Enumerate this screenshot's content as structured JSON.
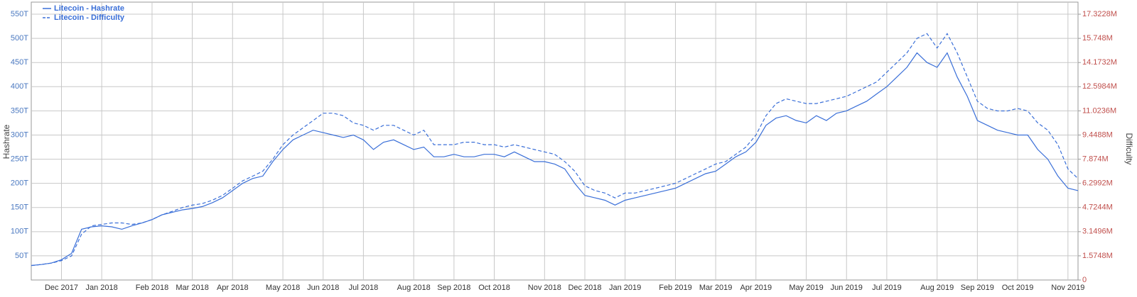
{
  "chart_data": {
    "type": "line",
    "categories": [
      null,
      null,
      null,
      "Dec 2017",
      null,
      null,
      null,
      "Jan 2018",
      null,
      null,
      null,
      null,
      "Feb 2018",
      null,
      null,
      null,
      "Mar 2018",
      null,
      null,
      null,
      "Apr 2018",
      null,
      null,
      null,
      null,
      "May 2018",
      null,
      null,
      null,
      "Jun 2018",
      null,
      null,
      null,
      "Jul 2018",
      null,
      null,
      null,
      null,
      "Aug 2018",
      null,
      null,
      null,
      "Sep 2018",
      null,
      null,
      null,
      "Oct 2018",
      null,
      null,
      null,
      null,
      "Nov 2018",
      null,
      null,
      null,
      "Dec 2018",
      null,
      null,
      null,
      "Jan 2019",
      null,
      null,
      null,
      null,
      "Feb 2019",
      null,
      null,
      null,
      "Mar 2019",
      null,
      null,
      null,
      "Apr 2019",
      null,
      null,
      null,
      null,
      "May 2019",
      null,
      null,
      null,
      "Jun 2019",
      null,
      null,
      null,
      "Jul 2019",
      null,
      null,
      null,
      null,
      "Aug 2019",
      null,
      null,
      null,
      "Sep 2019",
      null,
      null,
      null,
      "Oct 2019",
      null,
      null,
      null,
      null,
      "Nov 2019",
      null
    ],
    "series": [
      {
        "name": "Litecoin - Hashrate",
        "color": "#3a6fd8",
        "dash": false,
        "values": [
          30,
          32,
          35,
          42,
          55,
          105,
          110,
          112,
          110,
          105,
          112,
          118,
          125,
          135,
          140,
          145,
          148,
          152,
          160,
          170,
          185,
          200,
          210,
          215,
          245,
          270,
          290,
          300,
          310,
          305,
          300,
          295,
          300,
          290,
          270,
          285,
          290,
          280,
          270,
          275,
          255,
          255,
          260,
          255,
          255,
          260,
          260,
          255,
          265,
          255,
          245,
          245,
          240,
          230,
          200,
          175,
          170,
          165,
          155,
          165,
          170,
          175,
          180,
          185,
          190,
          200,
          210,
          220,
          225,
          240,
          255,
          265,
          285,
          320,
          335,
          340,
          330,
          325,
          340,
          330,
          345,
          350,
          360,
          370,
          385,
          400,
          420,
          440,
          470,
          450,
          440,
          470,
          420,
          380,
          330,
          320,
          310,
          305,
          300,
          300,
          270,
          250,
          215,
          190,
          185
        ]
      },
      {
        "name": "Litecoin - Difficulty",
        "color": "#3a6fd8",
        "dash": true,
        "axis": "y2",
        "values": [
          0.94,
          1.01,
          1.1,
          1.26,
          1.57,
          2.99,
          3.53,
          3.62,
          3.72,
          3.72,
          3.62,
          3.72,
          3.94,
          4.25,
          4.47,
          4.72,
          4.88,
          4.98,
          5.2,
          5.51,
          5.98,
          6.46,
          6.77,
          7.09,
          7.87,
          8.82,
          9.45,
          9.92,
          10.39,
          10.87,
          10.87,
          10.71,
          10.24,
          10.08,
          9.76,
          10.08,
          10.08,
          9.76,
          9.45,
          9.76,
          8.82,
          8.82,
          8.82,
          8.98,
          8.98,
          8.82,
          8.82,
          8.66,
          8.82,
          8.66,
          8.5,
          8.35,
          8.19,
          7.72,
          7.09,
          6.14,
          5.83,
          5.67,
          5.35,
          5.67,
          5.67,
          5.83,
          5.98,
          6.14,
          6.3,
          6.61,
          6.93,
          7.24,
          7.56,
          7.72,
          8.19,
          8.66,
          9.45,
          10.71,
          11.5,
          11.81,
          11.65,
          11.5,
          11.5,
          11.65,
          11.81,
          11.97,
          12.28,
          12.6,
          12.91,
          13.54,
          14.17,
          14.8,
          15.75,
          16.06,
          15.12,
          16.06,
          14.8,
          13.23,
          11.65,
          11.18,
          11.02,
          11.02,
          11.18,
          11.02,
          10.24,
          9.76,
          8.82,
          7.24,
          6.61
        ]
      }
    ],
    "y_label": "Hashrate",
    "y2_label": "Difficulty",
    "ylim": [
      0,
      575
    ],
    "yticks": [
      {
        "value": 50,
        "label": "50T"
      },
      {
        "value": 100,
        "label": "100T"
      },
      {
        "value": 150,
        "label": "150T"
      },
      {
        "value": 200,
        "label": "200T"
      },
      {
        "value": 250,
        "label": "250T"
      },
      {
        "value": 300,
        "label": "300T"
      },
      {
        "value": 350,
        "label": "350T"
      },
      {
        "value": 400,
        "label": "400T"
      },
      {
        "value": 450,
        "label": "450T"
      },
      {
        "value": 500,
        "label": "500T"
      },
      {
        "value": 550,
        "label": "550T"
      }
    ],
    "y2lim": [
      0,
      18.11
    ],
    "y2ticks": [
      0,
      {
        "value": 1.5748,
        "label": "1.5748M"
      },
      {
        "value": 3.1496,
        "label": "3.1496M"
      },
      {
        "value": 4.7244,
        "label": "4.7244M"
      },
      {
        "value": 6.2992,
        "label": "6.2992M"
      },
      {
        "value": 7.874,
        "label": "7.874M"
      },
      {
        "value": 9.4488,
        "label": "9.4488M"
      },
      {
        "value": 11.0236,
        "label": "11.0236M"
      },
      {
        "value": 12.5984,
        "label": "12.5984M"
      },
      {
        "value": 14.1732,
        "label": "14.1732M"
      },
      {
        "value": 15.748,
        "label": "15.748M"
      },
      {
        "value": 17.3228,
        "label": "17.3228M"
      }
    ],
    "left_tick_color": "#4a78c0",
    "right_tick_color": "#c0504d",
    "grid": true,
    "legend": "top-left"
  }
}
